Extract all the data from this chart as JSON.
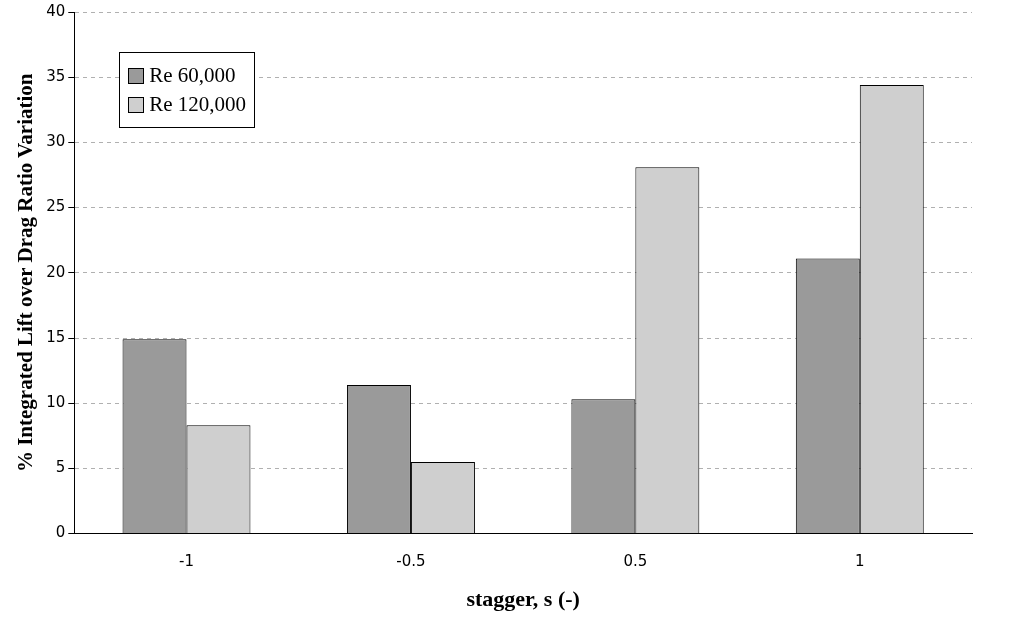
{
  "chart_data": {
    "type": "bar",
    "xlabel": "stagger, s (-)",
    "ylabel": "% Integrated Lift over Drag Ratio Variation",
    "categories": [
      "-1",
      "-0.5",
      "0.5",
      "1"
    ],
    "series": [
      {
        "name": "Re 60,000",
        "color": "#9a9a9a",
        "values": [
          14.9,
          11.4,
          10.3,
          21.1
        ]
      },
      {
        "name": "Re 120,000",
        "color": "#cfcfcf",
        "values": [
          8.3,
          5.5,
          28.1,
          34.4
        ]
      }
    ],
    "ylim": [
      0,
      40
    ],
    "yticks": [
      0,
      5,
      10,
      15,
      20,
      25,
      30,
      35,
      40
    ],
    "grid": "y",
    "legend": "top left"
  }
}
